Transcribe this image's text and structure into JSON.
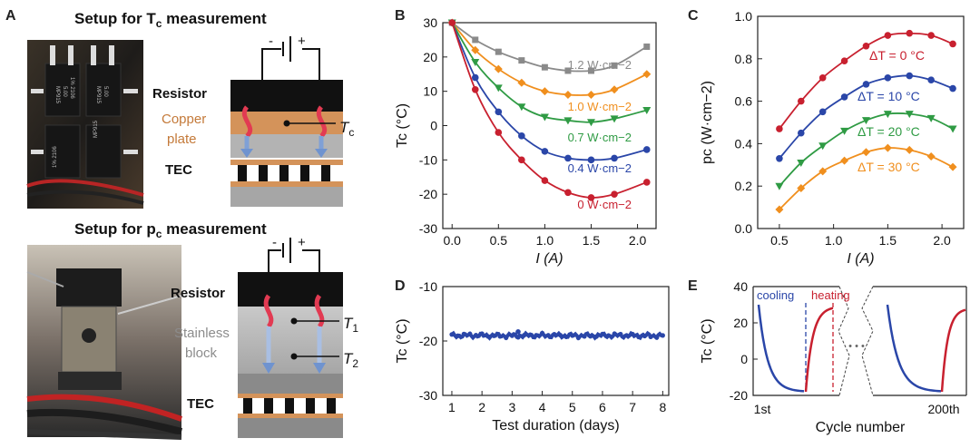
{
  "colors": {
    "red": "#c8202f",
    "blue": "#2a46a8",
    "green": "#2f9b44",
    "orange": "#f08f1e",
    "gray": "#8a8a8a",
    "copper": "#d4935a",
    "steel": "#b8b8b8",
    "tec": "#111111"
  },
  "panelA": {
    "label": "A",
    "title1": "Setup for T",
    "title1_sub": "c",
    "title1_tail": " measurement",
    "title2": "Setup for p",
    "title2_sub": "c",
    "title2_tail": " measurement",
    "resistor": "Resistor",
    "copper1": "Copper",
    "copper2": "plate",
    "tec": "TEC",
    "tc": "T",
    "tc_sub": "c",
    "stainless1": "Stainless",
    "stainless2": "block",
    "t1": "T",
    "t1_sub": "1",
    "t2": "T",
    "t2_sub": "2",
    "minus": "-",
    "plus": "+",
    "resistor_print": [
      "MP915",
      "5.00",
      "1% 2106"
    ]
  },
  "chart_data": [
    {
      "panel": "B",
      "type": "line",
      "xlabel": "I (A)",
      "ylabel": "Tc (°C)",
      "xlim": [
        -0.1,
        2.2
      ],
      "ylim": [
        -30,
        30
      ],
      "xticks": [
        "0.0",
        "0.5",
        "1.0",
        "1.5",
        "2.0"
      ],
      "yticks": [
        "-30",
        "-20",
        "-10",
        "0",
        "10",
        "20",
        "30"
      ],
      "series": [
        {
          "name": "1.2 W·cm−2",
          "color": "gray",
          "marker": "square",
          "x": [
            0,
            0.25,
            0.5,
            0.75,
            1.0,
            1.25,
            1.5,
            1.75,
            2.1
          ],
          "y": [
            30,
            25,
            21.5,
            19,
            17,
            16,
            16,
            17.5,
            23
          ]
        },
        {
          "name": "1.0 W·cm−2",
          "color": "orange",
          "marker": "diamond",
          "x": [
            0,
            0.25,
            0.5,
            0.75,
            1.0,
            1.25,
            1.5,
            1.75,
            2.1
          ],
          "y": [
            30,
            22,
            16.5,
            12.5,
            10,
            9,
            9,
            10.5,
            15
          ]
        },
        {
          "name": "0.7 W·cm−2",
          "color": "green",
          "marker": "triangle",
          "x": [
            0,
            0.25,
            0.5,
            0.75,
            1.0,
            1.25,
            1.5,
            1.75,
            2.1
          ],
          "y": [
            30,
            18.5,
            11,
            5.5,
            2.5,
            1.5,
            1,
            2,
            4.5
          ]
        },
        {
          "name": "0.4 W·cm−2",
          "color": "blue",
          "marker": "circle",
          "x": [
            0,
            0.25,
            0.5,
            0.75,
            1.0,
            1.25,
            1.5,
            1.75,
            2.1
          ],
          "y": [
            30,
            14,
            4,
            -3,
            -7.5,
            -9.5,
            -10,
            -9.5,
            -7
          ]
        },
        {
          "name": "0 W·cm−2",
          "color": "red",
          "marker": "circle",
          "x": [
            0,
            0.25,
            0.5,
            0.75,
            1.0,
            1.25,
            1.5,
            1.75,
            2.1
          ],
          "y": [
            30,
            10.5,
            -2,
            -10,
            -16,
            -19.5,
            -21,
            -20,
            -16.5
          ]
        }
      ]
    },
    {
      "panel": "C",
      "type": "line",
      "xlabel": "I (A)",
      "ylabel": "pc (W·cm−2)",
      "xlim": [
        0.3,
        2.2
      ],
      "ylim": [
        0.0,
        1.0
      ],
      "xticks": [
        "0.5",
        "1.0",
        "1.5",
        "2.0"
      ],
      "yticks": [
        "0.0",
        "0.2",
        "0.4",
        "0.6",
        "0.8",
        "1.0"
      ],
      "series": [
        {
          "name": "ΔT = 0 °C",
          "color": "red",
          "marker": "circle",
          "x": [
            0.5,
            0.7,
            0.9,
            1.1,
            1.3,
            1.5,
            1.7,
            1.9,
            2.1
          ],
          "y": [
            0.47,
            0.6,
            0.71,
            0.79,
            0.86,
            0.91,
            0.92,
            0.91,
            0.87
          ]
        },
        {
          "name": "ΔT = 10 °C",
          "color": "blue",
          "marker": "circle",
          "x": [
            0.5,
            0.7,
            0.9,
            1.1,
            1.3,
            1.5,
            1.7,
            1.9,
            2.1
          ],
          "y": [
            0.33,
            0.45,
            0.55,
            0.62,
            0.68,
            0.71,
            0.72,
            0.7,
            0.66
          ]
        },
        {
          "name": "ΔT = 20 °C",
          "color": "green",
          "marker": "triangle",
          "x": [
            0.5,
            0.7,
            0.9,
            1.1,
            1.3,
            1.5,
            1.7,
            1.9,
            2.1
          ],
          "y": [
            0.2,
            0.31,
            0.39,
            0.46,
            0.51,
            0.54,
            0.54,
            0.52,
            0.47
          ]
        },
        {
          "name": "ΔT = 30 °C",
          "color": "orange",
          "marker": "diamond",
          "x": [
            0.5,
            0.7,
            0.9,
            1.1,
            1.3,
            1.5,
            1.7,
            1.9,
            2.1
          ],
          "y": [
            0.09,
            0.19,
            0.27,
            0.32,
            0.36,
            0.38,
            0.37,
            0.34,
            0.29
          ]
        }
      ]
    },
    {
      "panel": "D",
      "type": "scatter",
      "xlabel": "Test duration (days)",
      "ylabel": "Tc (°C)",
      "xlim": [
        0.7,
        8.2
      ],
      "ylim": [
        -30,
        -10
      ],
      "xticks": [
        "1",
        "2",
        "3",
        "4",
        "5",
        "6",
        "7",
        "8"
      ],
      "yticks": [
        "-30",
        "-20",
        "-10"
      ],
      "series": [
        {
          "name": "Tc",
          "color": "blue",
          "x_range": [
            1,
            8
          ],
          "y_mean": -19
        }
      ]
    },
    {
      "panel": "E",
      "type": "line",
      "xlabel": "Cycle number",
      "ylabel": "Tc (°C)",
      "ylim": [
        -20,
        40
      ],
      "yticks": [
        "-20",
        "0",
        "20",
        "40"
      ],
      "xticks": [
        "1st",
        "200th"
      ],
      "annotations": [
        "cooling",
        "heating",
        "• • •"
      ],
      "series": [
        {
          "name": "cooling",
          "color": "blue",
          "y_start": 30,
          "y_end": -18
        },
        {
          "name": "heating",
          "color": "red",
          "y_start": -18,
          "y_end": 30
        }
      ]
    }
  ]
}
